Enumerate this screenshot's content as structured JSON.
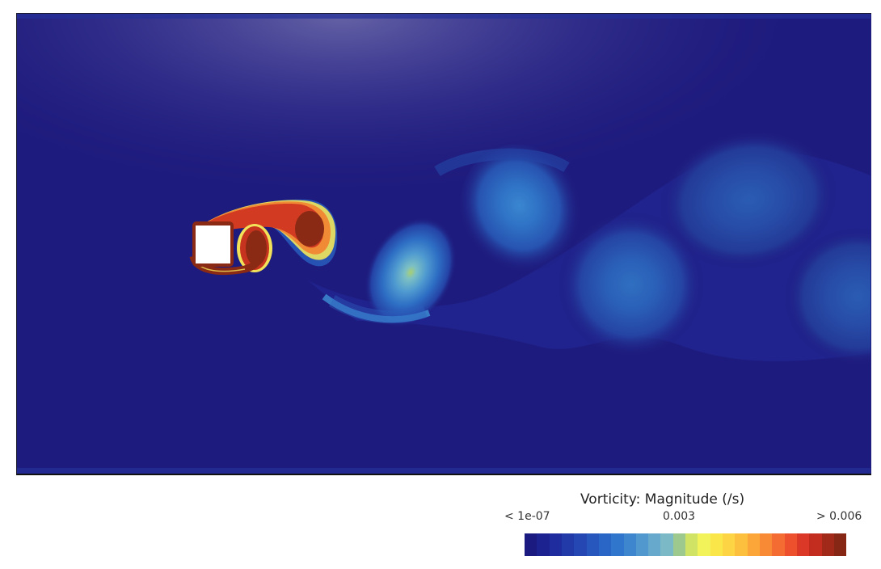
{
  "legend": {
    "title": "Vorticity: Magnitude (/s)",
    "tick_min": "< 1e-07",
    "tick_mid": "0.003",
    "tick_max": "> 0.006",
    "colors": [
      "#1a1a80",
      "#1c2390",
      "#1f2c9e",
      "#223aa8",
      "#2447b3",
      "#2756bd",
      "#2a66c6",
      "#2f76cc",
      "#3e87cf",
      "#5198cf",
      "#66a9cd",
      "#7cb9c6",
      "#9ec98e",
      "#d1e364",
      "#f2f25a",
      "#fbe64a",
      "#fdd444",
      "#fdbf3e",
      "#fca63a",
      "#f98a35",
      "#f46c31",
      "#ec502c",
      "#dc3827",
      "#c22d1f",
      "#a0291a",
      "#862614"
    ]
  }
}
